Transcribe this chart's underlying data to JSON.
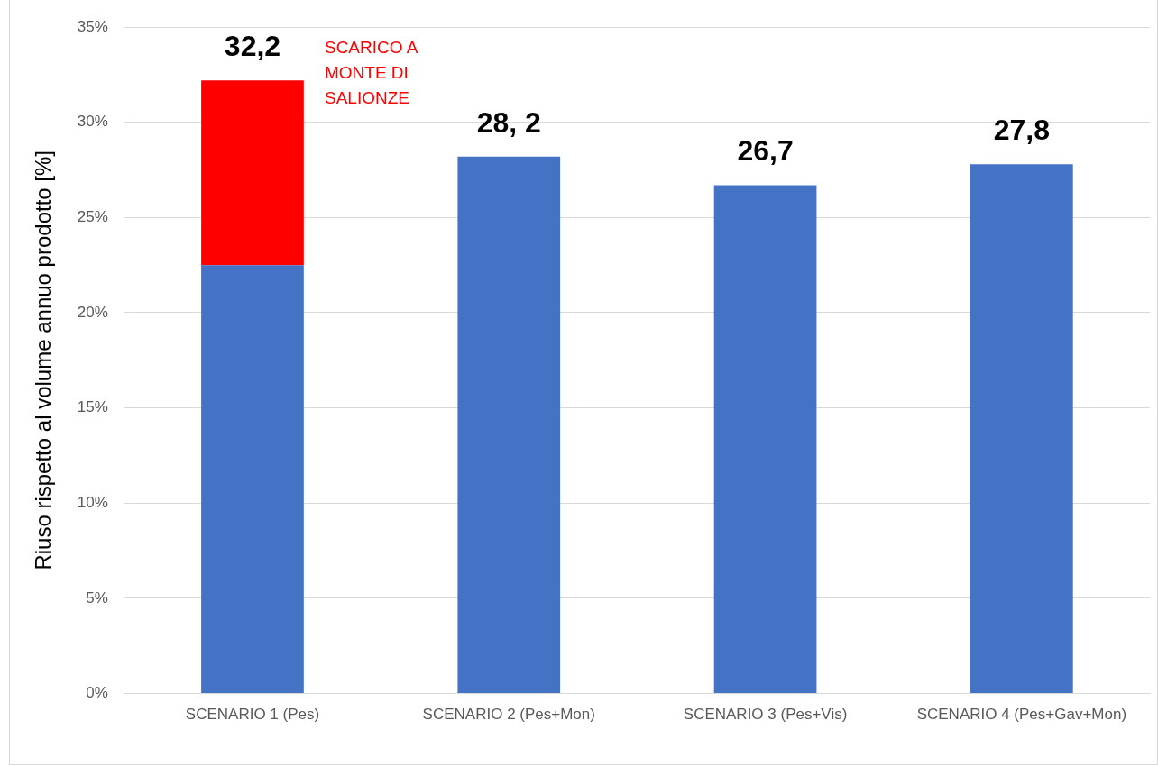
{
  "chart_data": {
    "type": "bar",
    "stacked": true,
    "ylabel": "Riuso rispetto al volume annuo prodotto [%]",
    "categories": [
      "SCENARIO 1 (Pes)",
      "SCENARIO 2 (Pes+Mon)",
      "SCENARIO 3 (Pes+Vis)",
      "SCENARIO 4 (Pes+Gav+Mon)"
    ],
    "series": [
      {
        "color": "#4472c4",
        "values": [
          22.5,
          28.2,
          26.7,
          27.8
        ]
      },
      {
        "color": "#ff0000",
        "values": [
          9.7,
          null,
          null,
          null
        ]
      }
    ],
    "totals": [
      "32,2",
      "28, 2",
      "26,7",
      "27,8"
    ],
    "annotations": [
      "SCARICO A MONTE DI SALIONZE"
    ],
    "ylim": [
      0,
      35
    ],
    "yticks": [
      {
        "value": 0,
        "label": "0%"
      },
      {
        "value": 5,
        "label": "5%"
      },
      {
        "value": 10,
        "label": "10%"
      },
      {
        "value": 15,
        "label": "15%"
      },
      {
        "value": 20,
        "label": "20%"
      },
      {
        "value": 25,
        "label": "25%"
      },
      {
        "value": 30,
        "label": "30%"
      },
      {
        "value": 35,
        "label": "35%"
      }
    ],
    "grid": "y",
    "legend": false
  }
}
